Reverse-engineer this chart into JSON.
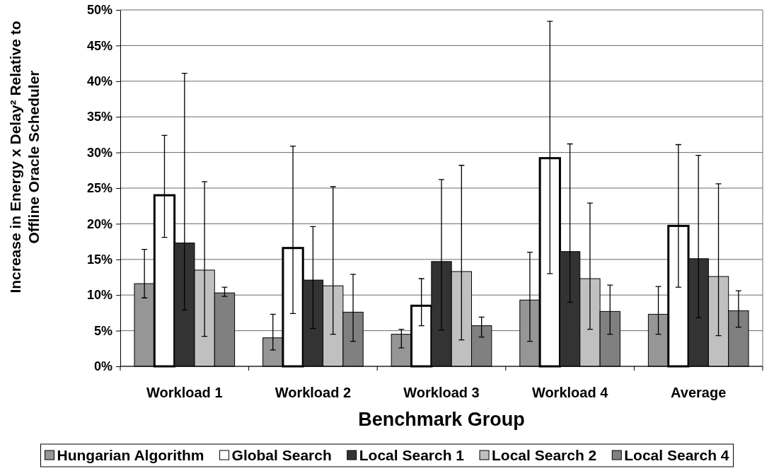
{
  "chart_data": {
    "type": "bar",
    "xlabel": "Benchmark Group",
    "ylabel": "Increase in Energy x Delay² Relative to Offline Oracle Scheduler",
    "categories": [
      "Workload 1",
      "Workload 2",
      "Workload 3",
      "Workload 4",
      "Average"
    ],
    "series": [
      {
        "name": "Hungarian Algorithm",
        "color": "#969696",
        "values": [
          11.6,
          4.0,
          4.5,
          9.3,
          7.3
        ],
        "errors": [
          [
            9.6,
            16.4
          ],
          [
            2.3,
            7.3
          ],
          [
            2.6,
            5.2
          ],
          [
            3.5,
            16.0
          ],
          [
            4.5,
            11.2
          ]
        ]
      },
      {
        "name": "Global Search",
        "color": "#ffffff",
        "values": [
          24.0,
          16.6,
          8.5,
          29.2,
          19.7
        ],
        "errors": [
          [
            18.1,
            32.4
          ],
          [
            7.4,
            30.9
          ],
          [
            5.7,
            12.3
          ],
          [
            13.0,
            48.4
          ],
          [
            11.1,
            31.1
          ]
        ]
      },
      {
        "name": "Local Search 1",
        "color": "#333333",
        "values": [
          17.3,
          12.1,
          14.7,
          16.1,
          15.1
        ],
        "errors": [
          [
            7.9,
            41.1
          ],
          [
            5.3,
            19.6
          ],
          [
            5.1,
            26.2
          ],
          [
            9.0,
            31.2
          ],
          [
            6.8,
            29.6
          ]
        ]
      },
      {
        "name": "Local Search 2",
        "color": "#c0c0c0",
        "values": [
          13.5,
          11.3,
          13.3,
          12.3,
          12.6
        ],
        "errors": [
          [
            4.2,
            25.9
          ],
          [
            4.5,
            25.2
          ],
          [
            3.7,
            28.2
          ],
          [
            5.2,
            22.9
          ],
          [
            4.3,
            25.6
          ]
        ]
      },
      {
        "name": "Local Search 4",
        "color": "#808080",
        "values": [
          10.3,
          7.6,
          5.7,
          7.7,
          7.8
        ],
        "errors": [
          [
            9.8,
            11.1
          ],
          [
            3.5,
            12.9
          ],
          [
            4.1,
            6.9
          ],
          [
            4.5,
            11.4
          ],
          [
            5.5,
            10.6
          ]
        ]
      }
    ],
    "ylim": [
      0,
      50
    ],
    "yticks": [
      {
        "value": 0,
        "label": "0%"
      },
      {
        "value": 5,
        "label": "5%"
      },
      {
        "value": 10,
        "label": "10%"
      },
      {
        "value": 15,
        "label": "15%"
      },
      {
        "value": 20,
        "label": "20%"
      },
      {
        "value": 25,
        "label": "25%"
      },
      {
        "value": 30,
        "label": "30%"
      },
      {
        "value": 35,
        "label": "35%"
      },
      {
        "value": 40,
        "label": "40%"
      },
      {
        "value": 45,
        "label": "45%"
      },
      {
        "value": 50,
        "label": "50%"
      }
    ],
    "grid": "y",
    "legend": "bottom"
  }
}
